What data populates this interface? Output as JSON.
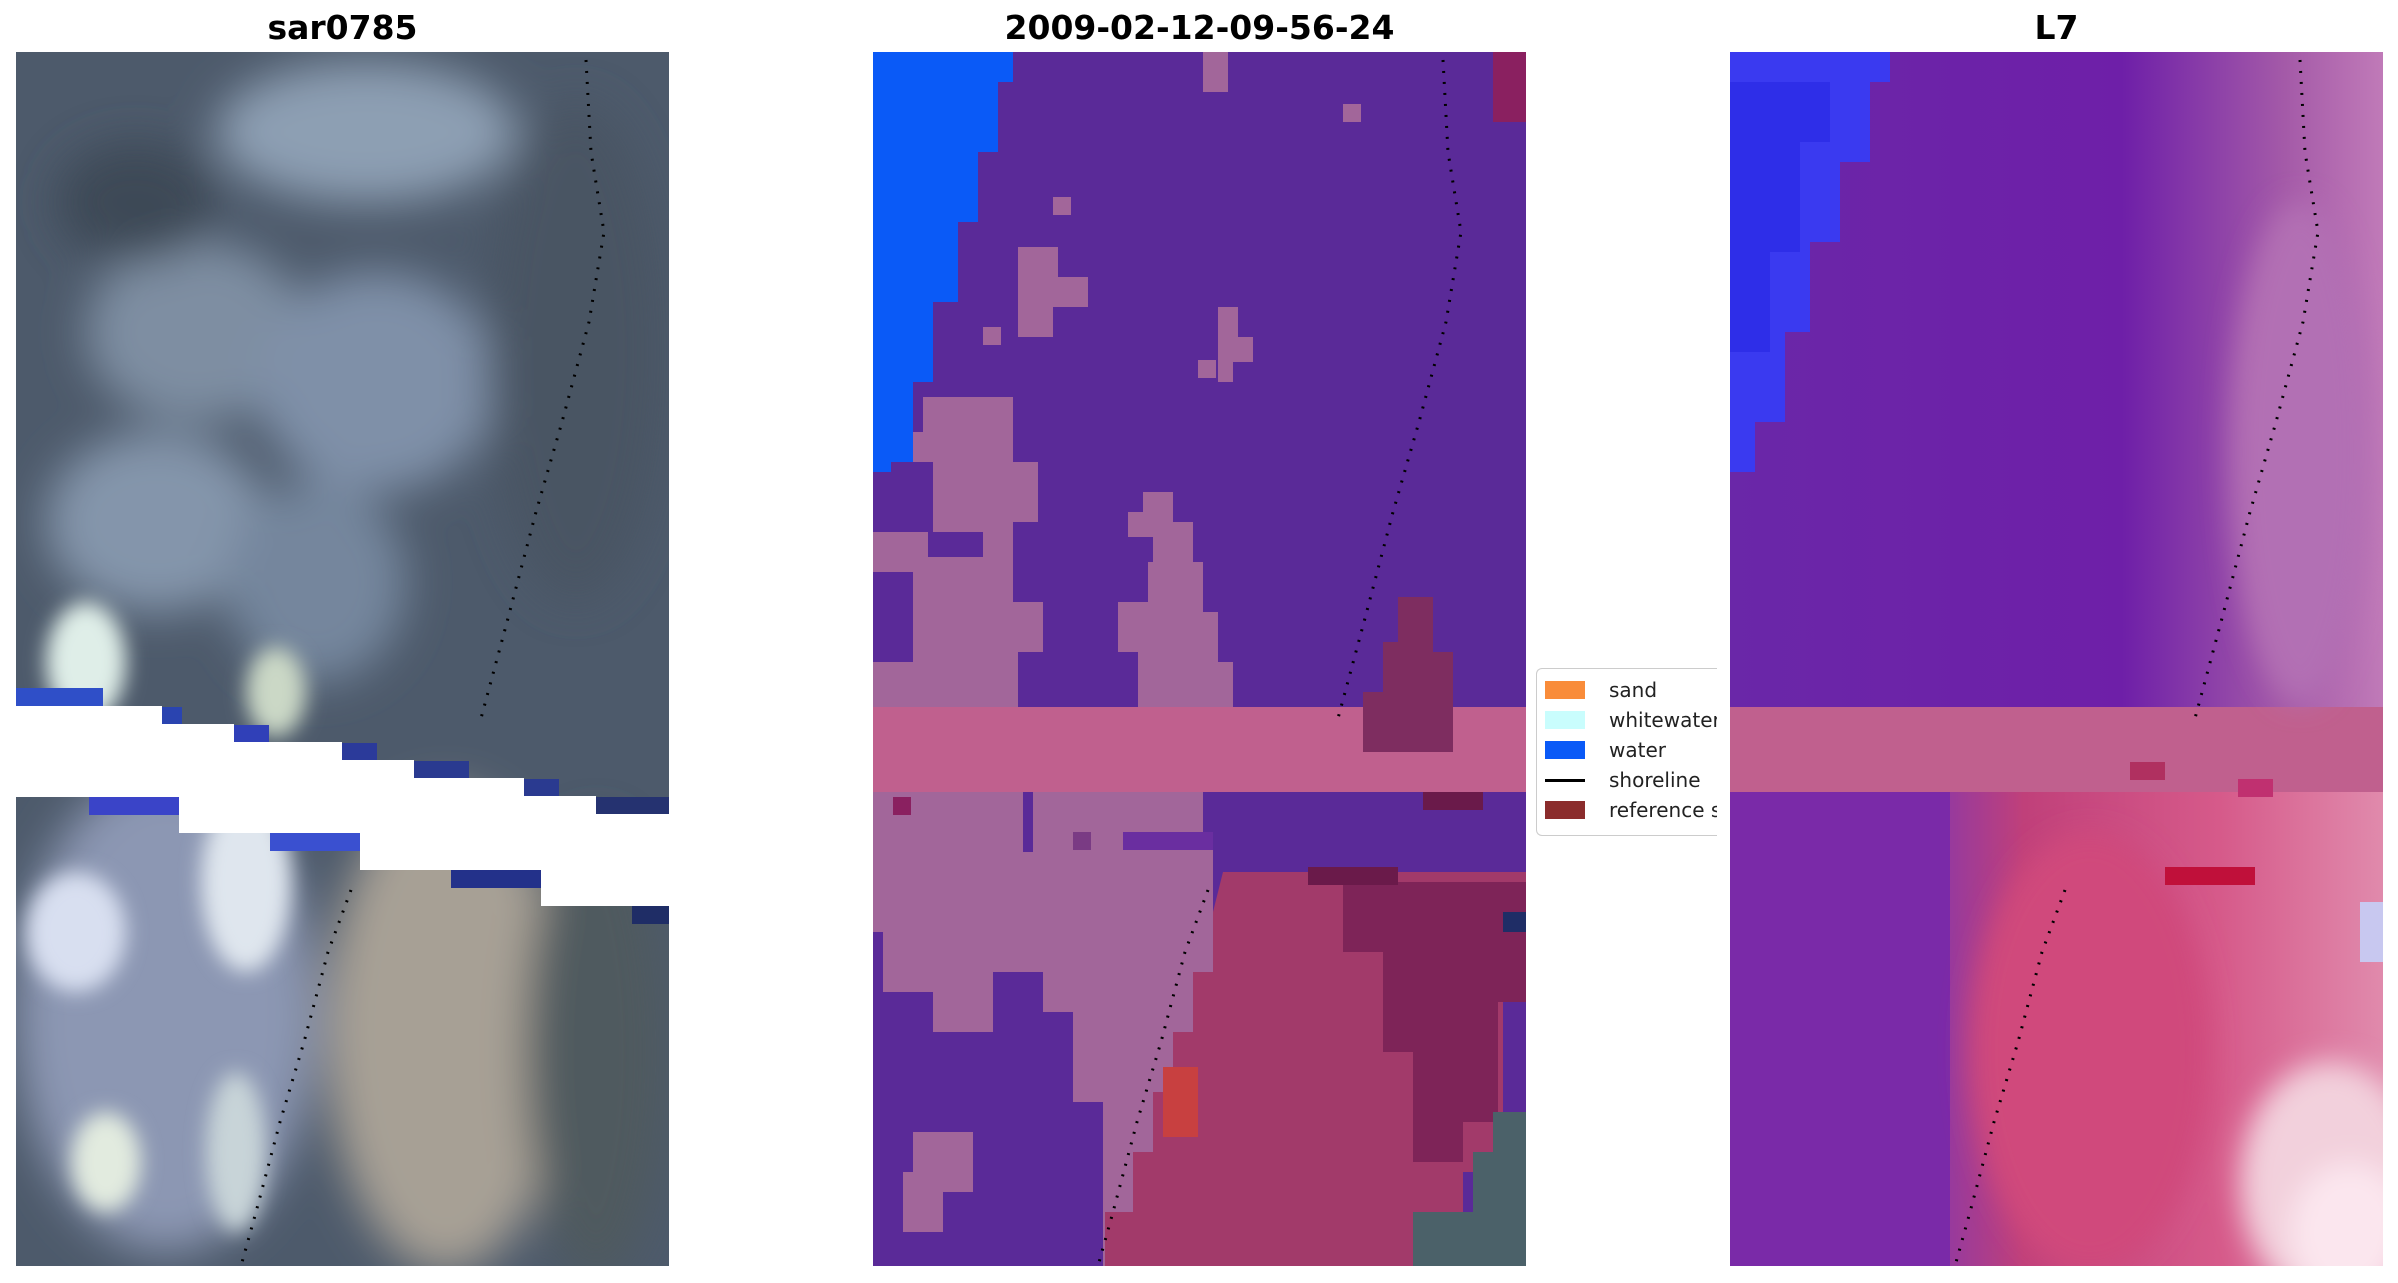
{
  "panels": [
    {
      "title": "sar0785"
    },
    {
      "title": "2009-02-12-09-56-24"
    },
    {
      "title": "L7"
    }
  ],
  "legend": {
    "items": [
      {
        "label": "sand",
        "kind": "patch",
        "color": "#f98c3a"
      },
      {
        "label": "whitewater",
        "kind": "patch",
        "color": "#c9fdfd"
      },
      {
        "label": "water",
        "kind": "patch",
        "color": "#0a5af7"
      },
      {
        "label": "shoreline",
        "kind": "line",
        "color": "#000000"
      },
      {
        "label": "reference sh",
        "kind": "patch",
        "color": "#8b2c2c"
      }
    ]
  },
  "colors": {
    "class_purple": "#5a2a98",
    "class_mauve": "#a2669a",
    "class_pink_band": "#c0608e",
    "class_water_blue": "#0a5af7",
    "class_sand_overlay": "#9a3060"
  }
}
